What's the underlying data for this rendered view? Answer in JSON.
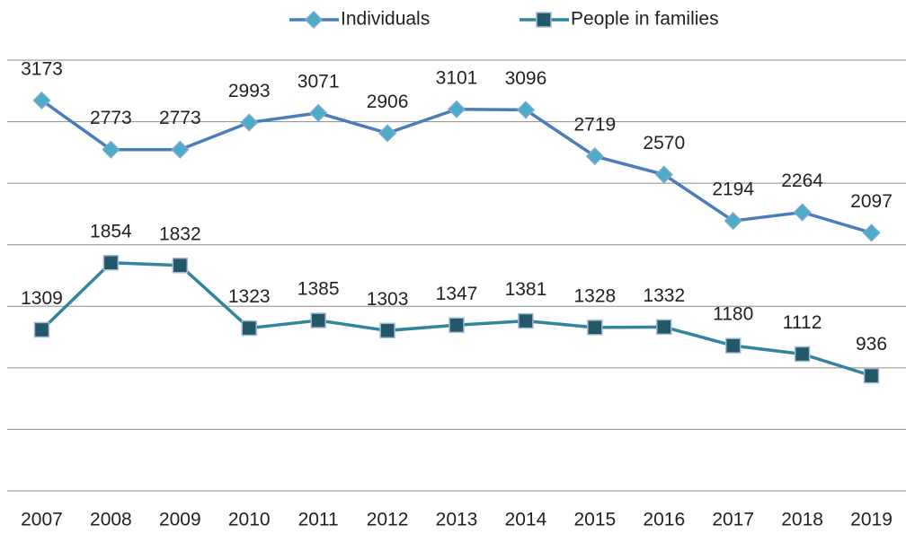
{
  "chart_data": {
    "type": "line",
    "categories": [
      "2007",
      "2008",
      "2009",
      "2010",
      "2011",
      "2012",
      "2013",
      "2014",
      "2015",
      "2016",
      "2017",
      "2018",
      "2019"
    ],
    "series": [
      {
        "name": "Individuals",
        "color": "#4a7ebb",
        "marker": "diamond",
        "marker_color": "#4bacc6",
        "values": [
          3173,
          2773,
          2773,
          2993,
          3071,
          2906,
          3101,
          3096,
          2719,
          2570,
          2194,
          2264,
          2097
        ]
      },
      {
        "name": "People in families",
        "color": "#31859c",
        "marker": "square",
        "marker_color": "#215968",
        "values": [
          1309,
          1854,
          1832,
          1323,
          1385,
          1303,
          1347,
          1381,
          1328,
          1332,
          1180,
          1112,
          936
        ]
      }
    ],
    "ylim": [
      0,
      3500
    ],
    "yticks": [
      0,
      500,
      1000,
      1500,
      2000,
      2500,
      3000,
      3500
    ],
    "grid": true,
    "legend": "top"
  }
}
